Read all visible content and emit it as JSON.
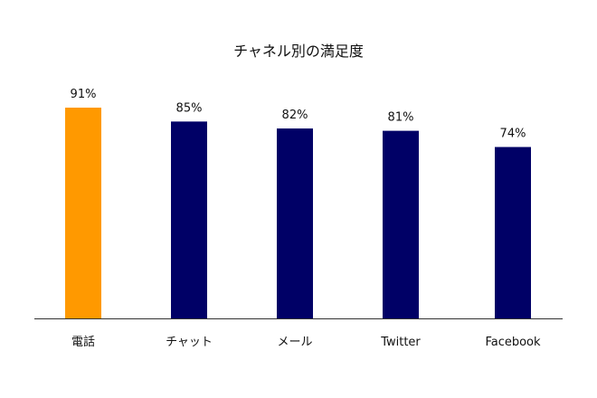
{
  "chart_data": {
    "type": "bar",
    "title": "チャネル別の満足度",
    "xlabel": "",
    "ylabel": "",
    "categories": [
      "電話",
      "チャット",
      "メール",
      "Twitter",
      "Facebook"
    ],
    "values": [
      91,
      85,
      82,
      81,
      74
    ],
    "value_labels": [
      "91%",
      "85%",
      "82%",
      "81%",
      "74%"
    ],
    "bar_colors": [
      "#FF9900",
      "#000066",
      "#000066",
      "#000066",
      "#000066"
    ],
    "highlight_color": "#FF9900",
    "base_color": "#000066",
    "ylim": [
      0,
      100
    ],
    "grid": false,
    "legend": "none"
  }
}
